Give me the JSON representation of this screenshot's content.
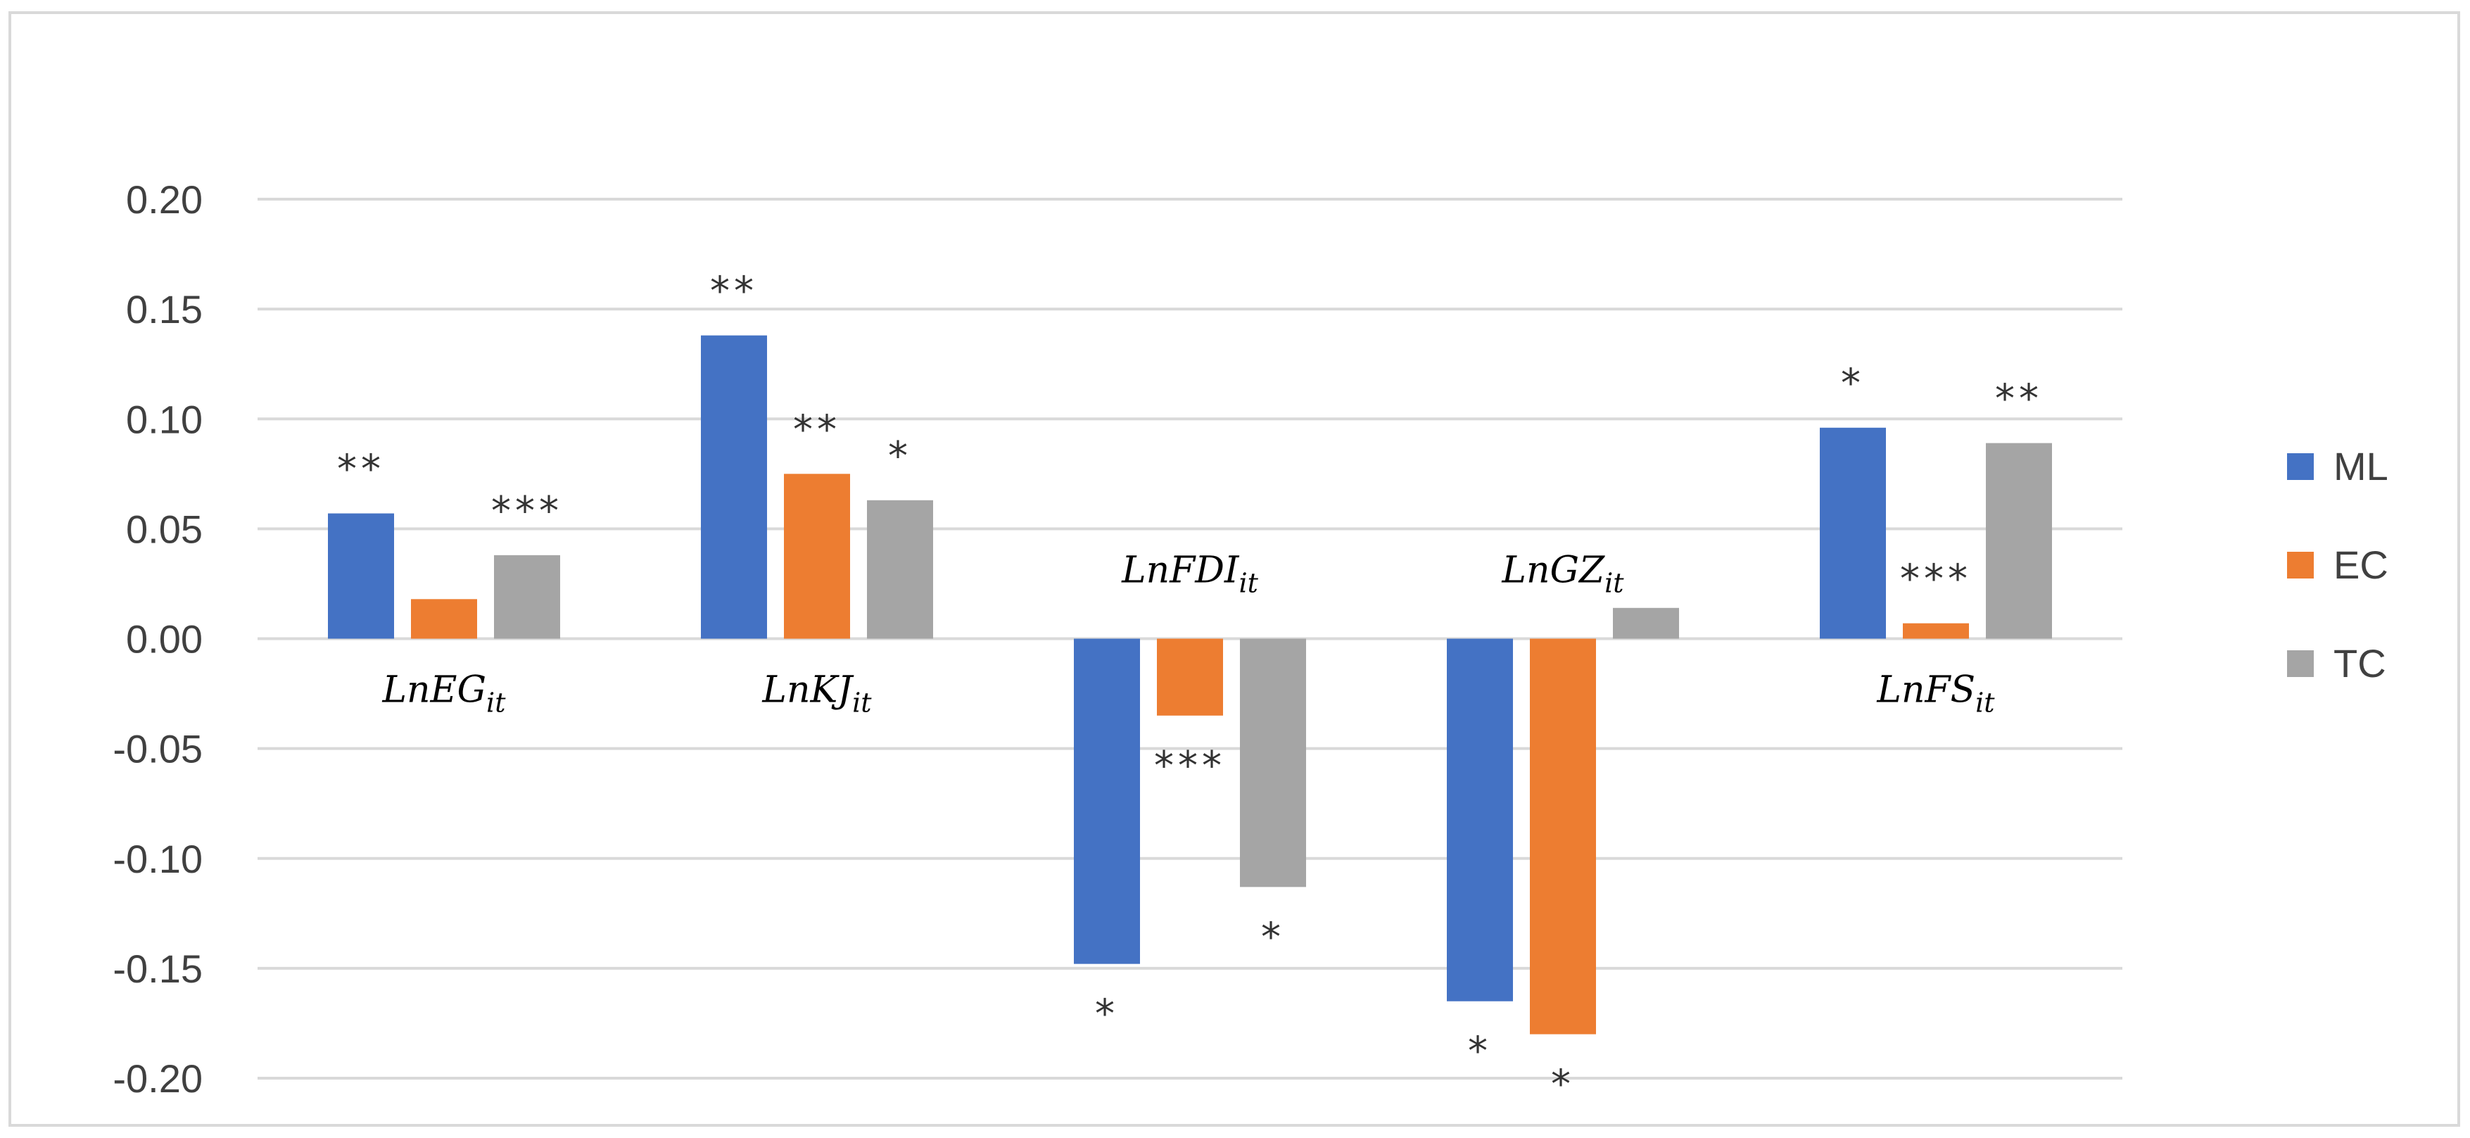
{
  "chart_data": {
    "type": "bar",
    "title": "",
    "xlabel": "",
    "ylabel": "",
    "ylim": [
      -0.2,
      0.2
    ],
    "y_ticks": [
      0.2,
      0.15,
      0.1,
      0.05,
      0.0,
      -0.05,
      -0.1,
      -0.15,
      -0.2
    ],
    "y_tick_labels": [
      "0.20",
      "0.15",
      "0.10",
      "0.05",
      "0.00",
      "-0.05",
      "-0.10",
      "-0.15",
      "-0.20"
    ],
    "grid": true,
    "legend_position": "right",
    "categories": [
      {
        "base": "LnEG",
        "sub": "it"
      },
      {
        "base": "LnKJ",
        "sub": "it"
      },
      {
        "base": "LnFDI",
        "sub": "it"
      },
      {
        "base": "LnGZ",
        "sub": "it"
      },
      {
        "base": "LnFS",
        "sub": "it"
      }
    ],
    "series": [
      {
        "name": "ML",
        "color": "#4472C4",
        "values": [
          0.057,
          0.138,
          -0.148,
          -0.165,
          0.096
        ],
        "significance": [
          "**",
          "**",
          "*",
          "*",
          "*"
        ]
      },
      {
        "name": "EC",
        "color": "#ED7D31",
        "values": [
          0.018,
          0.075,
          -0.035,
          -0.18,
          0.007
        ],
        "significance": [
          "",
          "**",
          "***",
          "*",
          "***"
        ]
      },
      {
        "name": "TC",
        "color": "#A5A5A5",
        "values": [
          0.038,
          0.063,
          -0.113,
          0.014,
          0.089
        ],
        "significance": [
          "***",
          "*",
          "*",
          "",
          "**"
        ]
      }
    ]
  }
}
